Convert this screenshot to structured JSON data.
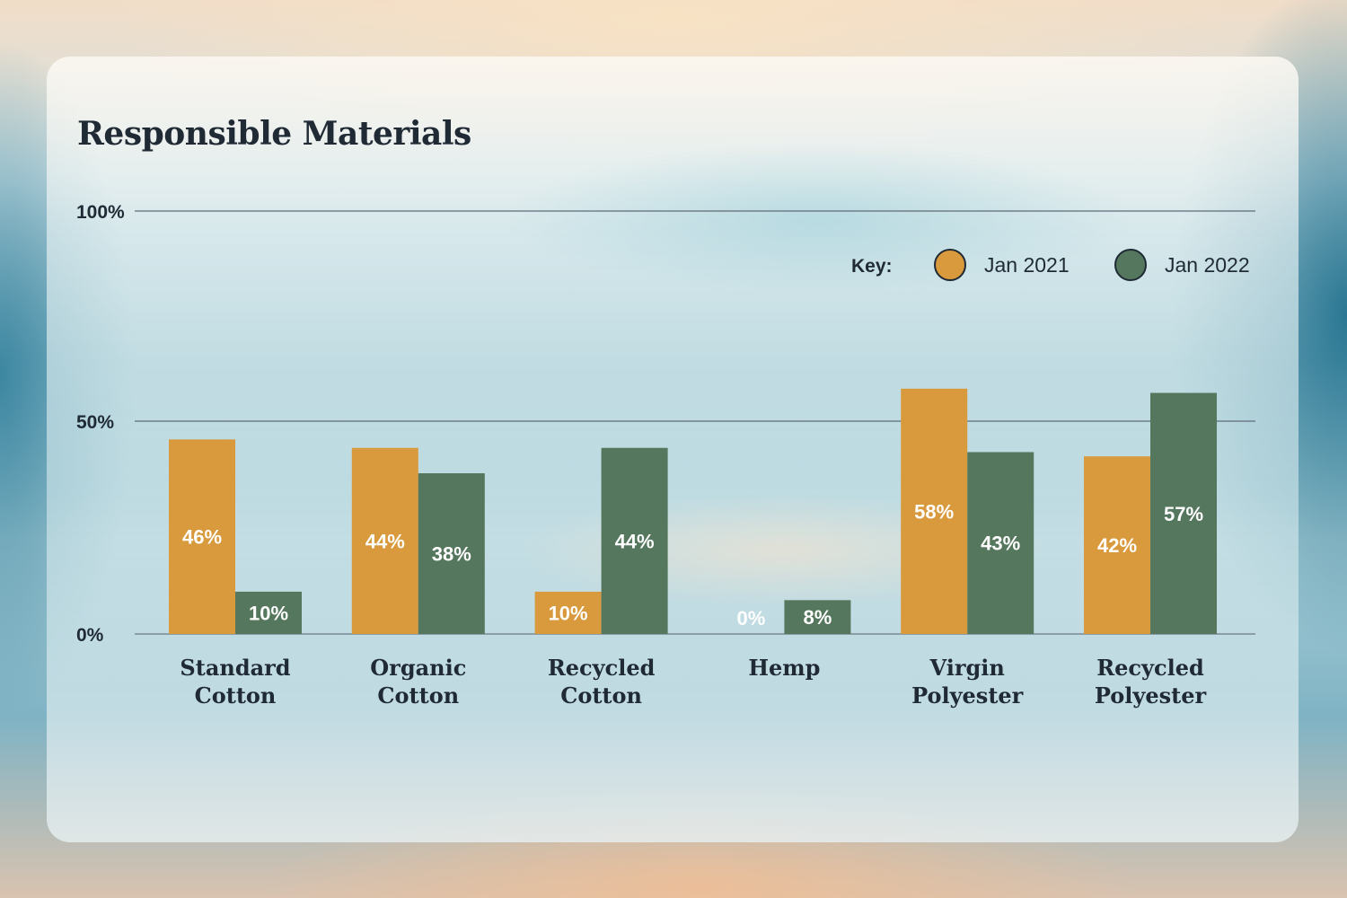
{
  "chart_data": {
    "type": "bar",
    "title": "Responsible Materials",
    "categories": [
      [
        "Standard",
        "Cotton"
      ],
      [
        "Organic",
        "Cotton"
      ],
      [
        "Recycled",
        "Cotton"
      ],
      [
        "Hemp"
      ],
      [
        "Virgin",
        "Polyester"
      ],
      [
        "Recycled",
        "Polyester"
      ]
    ],
    "series": [
      {
        "name": "Jan 2021",
        "color": "#d89a3c",
        "values": [
          46,
          44,
          10,
          0,
          58,
          42
        ],
        "labels": [
          "46%",
          "44%",
          "10%",
          "0%",
          "58%",
          "42%"
        ]
      },
      {
        "name": "Jan 2022",
        "color": "#55775d",
        "values": [
          10,
          38,
          44,
          8,
          43,
          57
        ],
        "labels": [
          "10%",
          "38%",
          "44%",
          "8%",
          "43%",
          "57%"
        ]
      }
    ],
    "yticks": [
      {
        "value": 100,
        "label": "100%"
      },
      {
        "value": 50,
        "label": "50%"
      },
      {
        "value": 0,
        "label": "0%"
      }
    ],
    "ylim": [
      0,
      100
    ],
    "legend": {
      "key_label": "Key:",
      "position": "top-right"
    },
    "grid": true
  }
}
